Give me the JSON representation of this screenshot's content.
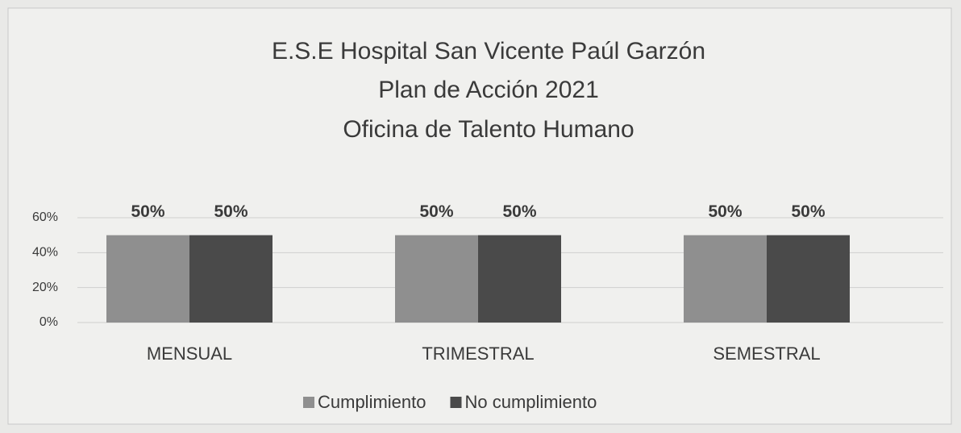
{
  "chart_data": {
    "type": "bar",
    "title": [
      "E.S.E Hospital San Vicente Paúl Garzón",
      "Plan de Acción 2021",
      "Oficina de Talento Humano"
    ],
    "categories": [
      "MENSUAL",
      "TRIMESTRAL",
      "SEMESTRAL"
    ],
    "series": [
      {
        "name": "Cumplimiento",
        "color": "#8f8f8f",
        "values": [
          50,
          50,
          50
        ],
        "value_labels": [
          "50%",
          "50%",
          "50%"
        ]
      },
      {
        "name": "No cumplimiento",
        "color": "#4a4a4a",
        "values": [
          50,
          50,
          50
        ],
        "value_labels": [
          "50%",
          "50%",
          "50%"
        ]
      }
    ],
    "ylim": [
      0,
      60
    ],
    "yticks": [
      {
        "value": 0,
        "label": "0%"
      },
      {
        "value": 20,
        "label": "20%"
      },
      {
        "value": 40,
        "label": "40%"
      },
      {
        "value": 60,
        "label": "60%"
      }
    ],
    "grid": true,
    "legend": "bottom"
  }
}
